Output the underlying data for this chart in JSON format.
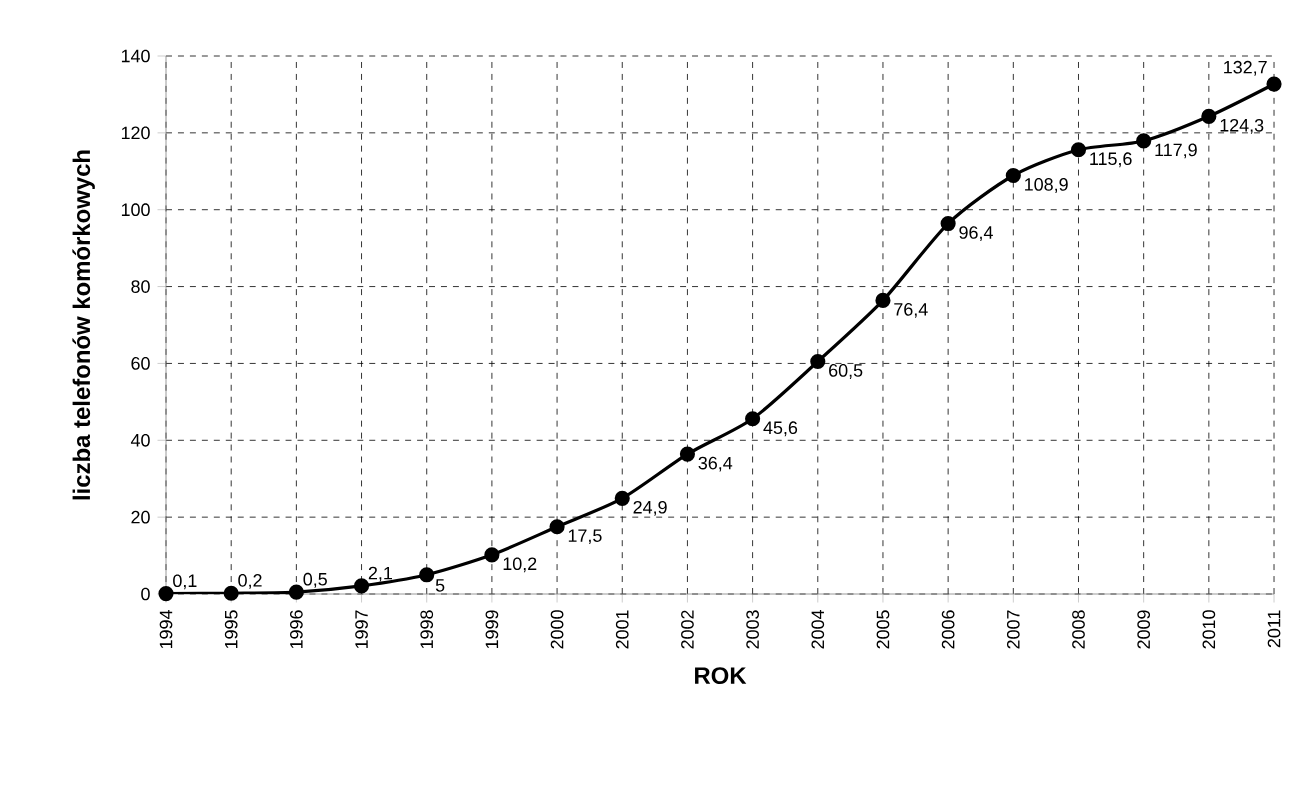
{
  "chart_data": {
    "type": "line",
    "xlabel": "ROK",
    "ylabel": "liczba telefonów komórkowych",
    "x": [
      1994,
      1995,
      1996,
      1997,
      1998,
      1999,
      2000,
      2001,
      2002,
      2003,
      2004,
      2005,
      2006,
      2007,
      2008,
      2009,
      2010,
      2011
    ],
    "series": [
      {
        "color": "#000000",
        "values": [
          0.1,
          0.2,
          0.5,
          2.1,
          5,
          10.2,
          17.5,
          24.9,
          36.4,
          45.6,
          60.5,
          76.4,
          96.4,
          108.9,
          115.6,
          117.9,
          124.3,
          132.7
        ],
        "value_labels": [
          "0,1",
          "0,2",
          "0,5",
          "2,1",
          "5",
          "10,2",
          "17,5",
          "24,9",
          "36,4",
          "45,6",
          "60,5",
          "76,4",
          "96,4",
          "108,9",
          "115,6",
          "117,9",
          "124,3",
          "132,7"
        ]
      }
    ],
    "xlim": [
      1994,
      2011
    ],
    "xticks": [
      1994,
      1995,
      1996,
      1997,
      1998,
      1999,
      2000,
      2001,
      2002,
      2003,
      2004,
      2005,
      2006,
      2007,
      2008,
      2009,
      2010,
      2011
    ],
    "ylim": [
      0,
      140
    ],
    "yticks": [
      0,
      20,
      40,
      60,
      80,
      100,
      120,
      140
    ],
    "grid": true,
    "marker": "circle",
    "line_style": "solid"
  }
}
